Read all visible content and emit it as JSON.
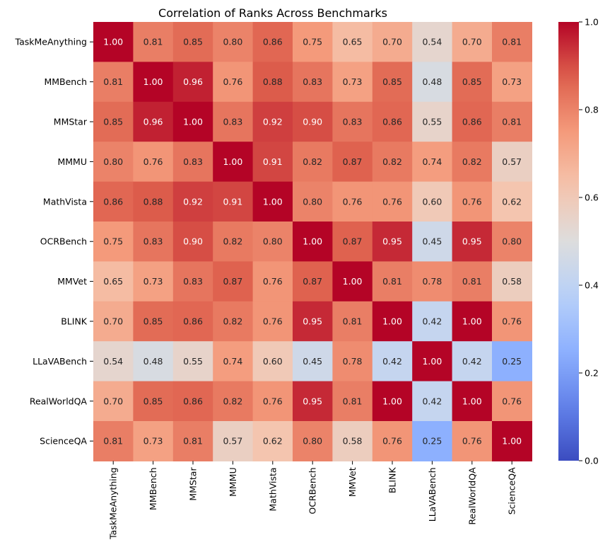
{
  "chart_data": {
    "type": "heatmap",
    "title": "Correlation of Ranks Across Benchmarks",
    "labels": [
      "TaskMeAnything",
      "MMBench",
      "MMStar",
      "MMMU",
      "MathVista",
      "OCRBench",
      "MMVet",
      "BLINK",
      "LLaVABench",
      "RealWorldQA",
      "ScienceQA"
    ],
    "values": [
      [
        1.0,
        0.81,
        0.85,
        0.8,
        0.86,
        0.75,
        0.65,
        0.7,
        0.54,
        0.7,
        0.81
      ],
      [
        0.81,
        1.0,
        0.96,
        0.76,
        0.88,
        0.83,
        0.73,
        0.85,
        0.48,
        0.85,
        0.73
      ],
      [
        0.85,
        0.96,
        1.0,
        0.83,
        0.92,
        0.9,
        0.83,
        0.86,
        0.55,
        0.86,
        0.81
      ],
      [
        0.8,
        0.76,
        0.83,
        1.0,
        0.91,
        0.82,
        0.87,
        0.82,
        0.74,
        0.82,
        0.57
      ],
      [
        0.86,
        0.88,
        0.92,
        0.91,
        1.0,
        0.8,
        0.76,
        0.76,
        0.6,
        0.76,
        0.62
      ],
      [
        0.75,
        0.83,
        0.9,
        0.82,
        0.8,
        1.0,
        0.87,
        0.95,
        0.45,
        0.95,
        0.8
      ],
      [
        0.65,
        0.73,
        0.83,
        0.87,
        0.76,
        0.87,
        1.0,
        0.81,
        0.78,
        0.81,
        0.58
      ],
      [
        0.7,
        0.85,
        0.86,
        0.82,
        0.76,
        0.95,
        0.81,
        1.0,
        0.42,
        1.0,
        0.76
      ],
      [
        0.54,
        0.48,
        0.55,
        0.74,
        0.6,
        0.45,
        0.78,
        0.42,
        1.0,
        0.42,
        0.25
      ],
      [
        0.7,
        0.85,
        0.86,
        0.82,
        0.76,
        0.95,
        0.81,
        1.0,
        0.42,
        1.0,
        0.76
      ],
      [
        0.81,
        0.73,
        0.81,
        0.57,
        0.62,
        0.8,
        0.58,
        0.76,
        0.25,
        0.76,
        1.0
      ]
    ],
    "value_format": "2 decimals",
    "colorscale": "coolwarm",
    "vmin": 0.0,
    "vmax": 1.0,
    "colorbar_ticks": [
      "0.0",
      "0.2",
      "0.4",
      "0.6",
      "0.8",
      "1.0"
    ]
  }
}
